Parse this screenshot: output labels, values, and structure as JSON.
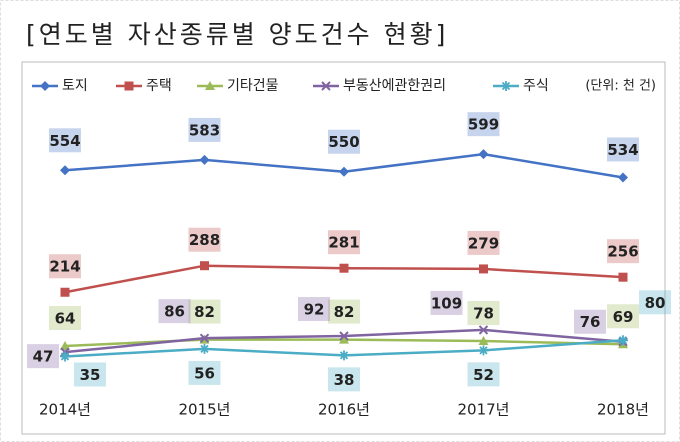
{
  "chart_data": {
    "type": "line",
    "title": "[연도별 자산종류별 양도건수 현황]",
    "unit": "(단위: 천 건)",
    "categories": [
      "2014년",
      "2015년",
      "2016년",
      "2017년",
      "2018년"
    ],
    "ylim": [
      0,
      750
    ],
    "series": [
      {
        "name": "토지",
        "color": "#4472c4",
        "marker": "diamond",
        "values": [
          554,
          583,
          550,
          599,
          534
        ]
      },
      {
        "name": "주택",
        "color": "#c0504d",
        "marker": "square",
        "values": [
          214,
          288,
          281,
          279,
          256
        ]
      },
      {
        "name": "기타건물",
        "color": "#9bbb59",
        "marker": "triangle",
        "values": [
          64,
          82,
          82,
          78,
          69
        ]
      },
      {
        "name": "부동산에관한권리",
        "color": "#8064a2",
        "marker": "x",
        "values": [
          47,
          86,
          92,
          109,
          76
        ]
      },
      {
        "name": "주식",
        "color": "#4bacc6",
        "marker": "star",
        "values": [
          35,
          56,
          38,
          52,
          80
        ]
      }
    ]
  }
}
